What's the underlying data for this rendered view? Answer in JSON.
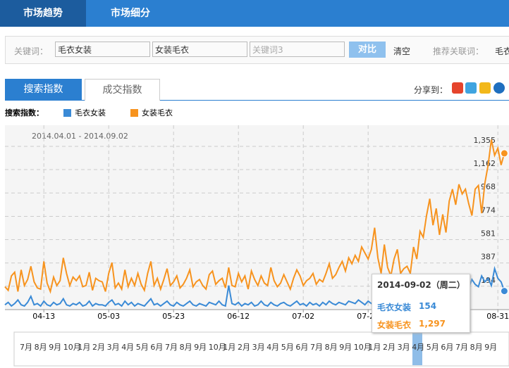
{
  "nav": {
    "tabs": [
      "市场趋势",
      "市场细分"
    ]
  },
  "search": {
    "label": "关键词：",
    "keywords": [
      "毛衣女装",
      "女装毛衣"
    ],
    "placeholder": "关键词3",
    "compare": "对比",
    "clear": "清空",
    "related_label": "推荐关联词：",
    "related": [
      "毛衣"
    ]
  },
  "index_tabs": [
    "搜索指数",
    "成交指数"
  ],
  "share_label": "分享到：",
  "chart_data": {
    "type": "line",
    "title": "搜索指数：",
    "subtitle": "2014.04.01 - 2014.09.02",
    "categories": [
      null,
      null,
      null,
      null,
      null,
      null,
      null,
      null,
      null,
      null,
      null,
      null,
      "04-13",
      null,
      null,
      null,
      null,
      null,
      null,
      null,
      null,
      null,
      null,
      null,
      null,
      null,
      null,
      null,
      null,
      null,
      null,
      null,
      "05-03",
      null,
      null,
      null,
      null,
      null,
      null,
      null,
      null,
      null,
      null,
      null,
      null,
      null,
      null,
      null,
      null,
      null,
      null,
      null,
      "05-23",
      null,
      null,
      null,
      null,
      null,
      null,
      null,
      null,
      null,
      null,
      null,
      null,
      null,
      null,
      null,
      null,
      null,
      null,
      null,
      "06-12",
      null,
      null,
      null,
      null,
      null,
      null,
      null,
      null,
      null,
      null,
      null,
      null,
      null,
      null,
      null,
      null,
      null,
      null,
      null,
      "07-02",
      null,
      null,
      null,
      null,
      null,
      null,
      null,
      null,
      null,
      null,
      null,
      null,
      null,
      null,
      null,
      null,
      null,
      null,
      null,
      "07-22",
      null,
      null,
      null,
      null,
      null,
      null,
      null,
      null,
      null,
      null,
      null,
      null,
      null,
      null,
      null,
      null,
      null,
      null,
      null,
      null,
      null,
      null,
      null,
      null,
      null,
      null,
      null,
      null,
      null,
      null,
      null,
      null,
      null,
      null,
      null,
      null,
      null,
      null,
      null,
      "08-31",
      null,
      null
    ],
    "series": [
      {
        "name": "毛衣女装",
        "color": "#3a8ad6",
        "values": [
          40,
          60,
          30,
          50,
          80,
          40,
          30,
          60,
          110,
          40,
          50,
          30,
          70,
          40,
          30,
          60,
          40,
          50,
          90,
          40,
          30,
          50,
          40,
          60,
          30,
          40,
          70,
          30,
          50,
          40,
          40,
          30,
          60,
          80,
          40,
          50,
          30,
          70,
          40,
          60,
          30,
          50,
          40,
          30,
          60,
          90,
          40,
          50,
          30,
          50,
          70,
          40,
          30,
          60,
          40,
          30,
          50,
          70,
          40,
          30,
          50,
          40,
          30,
          60,
          50,
          40,
          70,
          40,
          30,
          200,
          50,
          40,
          60,
          30,
          50,
          40,
          60,
          30,
          40,
          70,
          40,
          30,
          60,
          40,
          30,
          50,
          60,
          40,
          30,
          50,
          70,
          40,
          50,
          30,
          60,
          40,
          50,
          30,
          60,
          40,
          70,
          50,
          40,
          60,
          50,
          40,
          70,
          60,
          50,
          80,
          60,
          40,
          70,
          50,
          60,
          40,
          50,
          70,
          60,
          50,
          80,
          60,
          70,
          50,
          80,
          60,
          90,
          70,
          60,
          100,
          80,
          70,
          110,
          90,
          80,
          120,
          100,
          90,
          150,
          110,
          130,
          100,
          160,
          180,
          250,
          210,
          190,
          280,
          230,
          260,
          200,
          340,
          260,
          230,
          154
        ]
      },
      {
        "name": "女装毛衣",
        "color": "#f7931e",
        "values": [
          190,
          160,
          280,
          310,
          150,
          330,
          200,
          250,
          360,
          230,
          180,
          170,
          400,
          220,
          150,
          270,
          200,
          240,
          430,
          300,
          200,
          270,
          240,
          280,
          190,
          200,
          310,
          160,
          260,
          240,
          230,
          150,
          300,
          390,
          180,
          220,
          170,
          330,
          190,
          260,
          200,
          300,
          210,
          160,
          300,
          400,
          200,
          260,
          170,
          250,
          340,
          200,
          230,
          280,
          180,
          210,
          260,
          330,
          190,
          230,
          250,
          200,
          170,
          290,
          320,
          210,
          240,
          260,
          180,
          350,
          200,
          190,
          300,
          230,
          280,
          170,
          320,
          250,
          200,
          280,
          220,
          200,
          350,
          240,
          190,
          220,
          290,
          230,
          170,
          260,
          330,
          280,
          200,
          240,
          260,
          300,
          210,
          250,
          230,
          300,
          380,
          260,
          290,
          350,
          400,
          320,
          430,
          380,
          450,
          400,
          520,
          470,
          420,
          500,
          680,
          430,
          300,
          540,
          350,
          280,
          420,
          500,
          300,
          340,
          360,
          300,
          520,
          420,
          650,
          600,
          780,
          920,
          700,
          840,
          620,
          790,
          640,
          900,
          1000,
          870,
          1040,
          960,
          1000,
          880,
          780,
          1000,
          1030,
          800,
          1050,
          1200,
          1410,
          1280,
          1340,
          1200,
          1297
        ]
      }
    ],
    "ylim": [
      0,
      1530
    ],
    "yticks": [
      194,
      387,
      581,
      774,
      968,
      {
        "value": 1162,
        "label": "1,162"
      },
      {
        "value": 1355,
        "label": "1,355"
      }
    ],
    "grid": true
  },
  "tooltip": {
    "date": "2014-09-02（周二）",
    "rows": [
      {
        "name": "毛衣女装",
        "value": "154"
      },
      {
        "name": "女装毛衣",
        "value": "1,297"
      }
    ]
  },
  "navigator": {
    "labels": [
      "7月",
      "8月",
      "9月",
      "10月",
      "1月",
      "2月",
      "3月",
      "4月",
      "5月",
      "6月",
      "7月",
      "8月",
      "9月",
      "10月",
      "1月",
      "2月",
      "3月",
      "4月",
      "5月",
      "6月",
      "7月",
      "8月",
      "9月",
      "10月",
      "1月",
      "2月",
      "3月",
      "4月",
      "5月",
      "6月",
      "7月",
      "8月",
      "9月"
    ]
  }
}
